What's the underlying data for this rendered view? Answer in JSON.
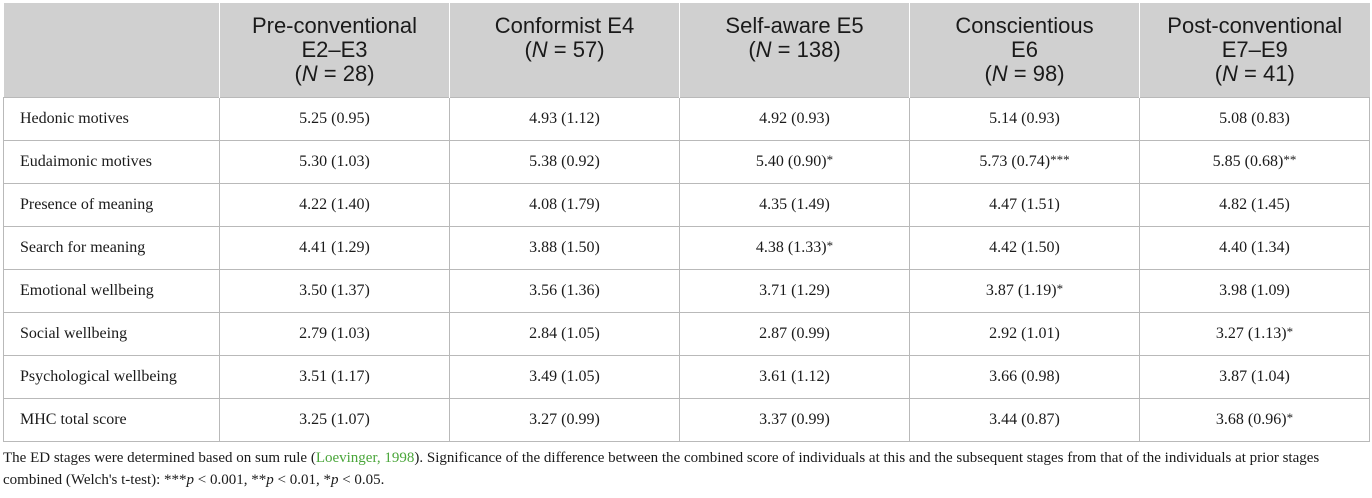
{
  "table": {
    "columns": [
      {
        "line1": "Pre-conventional",
        "line2": "E2–E3",
        "n_label": "N",
        "n_text": " = 28"
      },
      {
        "line1": "Conformist E4",
        "line2": "",
        "n_label": "N",
        "n_text": " = 57"
      },
      {
        "line1": "Self-aware E5",
        "line2": "",
        "n_label": "N",
        "n_text": " = 138"
      },
      {
        "line1": "Conscientious",
        "line2": "E6",
        "n_label": "N",
        "n_text": " = 98"
      },
      {
        "line1": "Post-conventional",
        "line2": "E7–E9",
        "n_label": "N",
        "n_text": " = 41"
      }
    ],
    "rows": [
      {
        "label": "Hedonic motives",
        "cells": [
          {
            "value": "5.25 (0.95)",
            "sig": ""
          },
          {
            "value": "4.93 (1.12)",
            "sig": ""
          },
          {
            "value": "4.92 (0.93)",
            "sig": ""
          },
          {
            "value": "5.14 (0.93)",
            "sig": ""
          },
          {
            "value": "5.08 (0.83)",
            "sig": ""
          }
        ]
      },
      {
        "label": "Eudaimonic motives",
        "cells": [
          {
            "value": "5.30 (1.03)",
            "sig": ""
          },
          {
            "value": "5.38 (0.92)",
            "sig": ""
          },
          {
            "value": "5.40 (0.90)",
            "sig": "*"
          },
          {
            "value": "5.73 (0.74)",
            "sig": "***"
          },
          {
            "value": "5.85 (0.68)",
            "sig": "**"
          }
        ]
      },
      {
        "label": "Presence of meaning",
        "cells": [
          {
            "value": "4.22 (1.40)",
            "sig": ""
          },
          {
            "value": "4.08 (1.79)",
            "sig": ""
          },
          {
            "value": "4.35 (1.49)",
            "sig": ""
          },
          {
            "value": "4.47 (1.51)",
            "sig": ""
          },
          {
            "value": "4.82 (1.45)",
            "sig": ""
          }
        ]
      },
      {
        "label": "Search for meaning",
        "cells": [
          {
            "value": "4.41 (1.29)",
            "sig": ""
          },
          {
            "value": "3.88 (1.50)",
            "sig": ""
          },
          {
            "value": "4.38 (1.33)",
            "sig": "*"
          },
          {
            "value": "4.42 (1.50)",
            "sig": ""
          },
          {
            "value": "4.40 (1.34)",
            "sig": ""
          }
        ]
      },
      {
        "label": "Emotional wellbeing",
        "cells": [
          {
            "value": "3.50 (1.37)",
            "sig": ""
          },
          {
            "value": "3.56 (1.36)",
            "sig": ""
          },
          {
            "value": "3.71 (1.29)",
            "sig": ""
          },
          {
            "value": "3.87 (1.19)",
            "sig": "*"
          },
          {
            "value": "3.98 (1.09)",
            "sig": ""
          }
        ]
      },
      {
        "label": "Social wellbeing",
        "cells": [
          {
            "value": "2.79 (1.03)",
            "sig": ""
          },
          {
            "value": "2.84 (1.05)",
            "sig": ""
          },
          {
            "value": "2.87 (0.99)",
            "sig": ""
          },
          {
            "value": "2.92 (1.01)",
            "sig": ""
          },
          {
            "value": "3.27 (1.13)",
            "sig": "*"
          }
        ]
      },
      {
        "label": "Psychological wellbeing",
        "cells": [
          {
            "value": "3.51 (1.17)",
            "sig": ""
          },
          {
            "value": "3.49 (1.05)",
            "sig": ""
          },
          {
            "value": "3.61 (1.12)",
            "sig": ""
          },
          {
            "value": "3.66 (0.98)",
            "sig": ""
          },
          {
            "value": "3.87 (1.04)",
            "sig": ""
          }
        ]
      },
      {
        "label": "MHC total score",
        "cells": [
          {
            "value": "3.25 (1.07)",
            "sig": ""
          },
          {
            "value": "3.27 (0.99)",
            "sig": ""
          },
          {
            "value": "3.37 (0.99)",
            "sig": ""
          },
          {
            "value": "3.44 (0.87)",
            "sig": ""
          },
          {
            "value": "3.68 (0.96)",
            "sig": "*"
          }
        ]
      }
    ]
  },
  "footnote": {
    "part1": "The ED stages were determined based on sum rule (",
    "citation": "Loevinger, 1998",
    "part2": "). Significance of the difference between the combined score of individuals at this and the subsequent stages from that of the individuals at prior stages combined (Welch's t-test): ***",
    "p1": "p",
    "t1": " < 0.001, **",
    "p2": "p",
    "t2": " < 0.01, *",
    "p3": "p",
    "t3": " < 0.05."
  },
  "colors": {
    "header_bg": "#d0d0d0",
    "citation": "#4aa63a",
    "border": "#b9b9b9"
  }
}
